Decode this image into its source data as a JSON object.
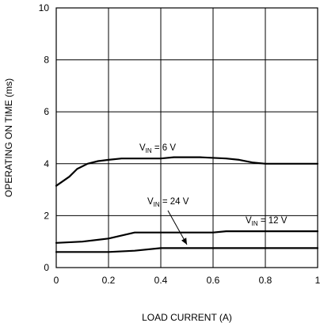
{
  "chart_data": {
    "type": "line",
    "title": "",
    "xlabel": "LOAD CURRENT (A)",
    "ylabel": "OPERATING ON TIME (ms)",
    "xlim": [
      0,
      1
    ],
    "ylim": [
      0,
      10
    ],
    "x_ticks": [
      "0",
      "0.2",
      "0.4",
      "0.6",
      "0.8",
      "1"
    ],
    "y_ticks": [
      "0",
      "2",
      "4",
      "6",
      "8",
      "10"
    ],
    "grid": true,
    "series": [
      {
        "name": "VIN = 6 V",
        "label_main": "V",
        "label_sub": "IN",
        "label_rest": " = 6 V",
        "x": [
          0,
          0.05,
          0.08,
          0.12,
          0.16,
          0.2,
          0.25,
          0.3,
          0.4,
          0.45,
          0.55,
          0.65,
          0.7,
          0.75,
          0.8,
          0.9,
          1.0
        ],
        "y": [
          3.15,
          3.5,
          3.8,
          4.0,
          4.1,
          4.15,
          4.2,
          4.2,
          4.2,
          4.25,
          4.25,
          4.2,
          4.15,
          4.05,
          4.0,
          4.0,
          4.0
        ]
      },
      {
        "name": "VIN = 12 V",
        "label_main": "V",
        "label_sub": "IN",
        "label_rest": " = 12 V",
        "x": [
          0,
          0.1,
          0.2,
          0.3,
          0.4,
          0.5,
          0.6,
          0.65,
          0.8,
          1.0
        ],
        "y": [
          0.95,
          1.0,
          1.12,
          1.35,
          1.35,
          1.35,
          1.35,
          1.4,
          1.4,
          1.4
        ]
      },
      {
        "name": "VIN = 24 V",
        "label_main": "V",
        "label_sub": "IN",
        "label_rest": " = 24 V",
        "x": [
          0,
          0.1,
          0.2,
          0.3,
          0.4,
          0.5,
          0.6,
          0.8,
          1.0
        ],
        "y": [
          0.6,
          0.6,
          0.6,
          0.65,
          0.75,
          0.75,
          0.75,
          0.75,
          0.75
        ]
      }
    ]
  }
}
